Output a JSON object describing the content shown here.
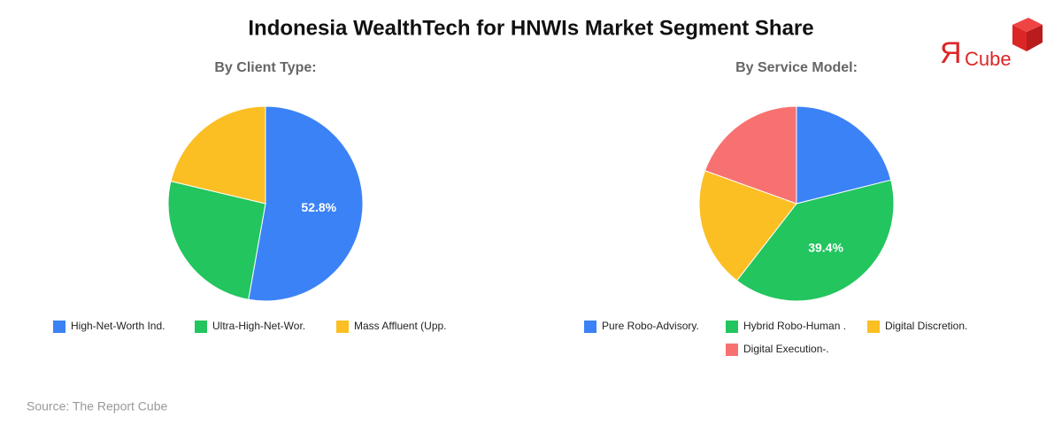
{
  "title": "Indonesia WealthTech for HNWIs Market Segment Share",
  "logo": {
    "mark": "Я",
    "text": "Cube"
  },
  "source": "Source: The Report Cube",
  "chart_data": [
    {
      "type": "pie",
      "title": "By Client Type:",
      "categories": [
        "High-Net-Worth Ind.",
        "Ultra-High-Net-Wor.",
        "Mass Affluent (Upp."
      ],
      "values": [
        52.8,
        25.9,
        21.3
      ],
      "value_labels": [
        "52.8%",
        null,
        null
      ],
      "colors": [
        "#3b82f6",
        "#22c55e",
        "#fbbf24"
      ]
    },
    {
      "type": "pie",
      "title": "By Service Model:",
      "categories": [
        "Pure Robo-Advisory.",
        "Hybrid Robo-Human .",
        "Digital Discretion.",
        "Digital Execution-."
      ],
      "values": [
        21.1,
        39.4,
        20.0,
        19.5
      ],
      "value_labels": [
        null,
        "39.4%",
        null,
        null
      ],
      "colors": [
        "#3b82f6",
        "#22c55e",
        "#fbbf24",
        "#f87171"
      ]
    }
  ]
}
